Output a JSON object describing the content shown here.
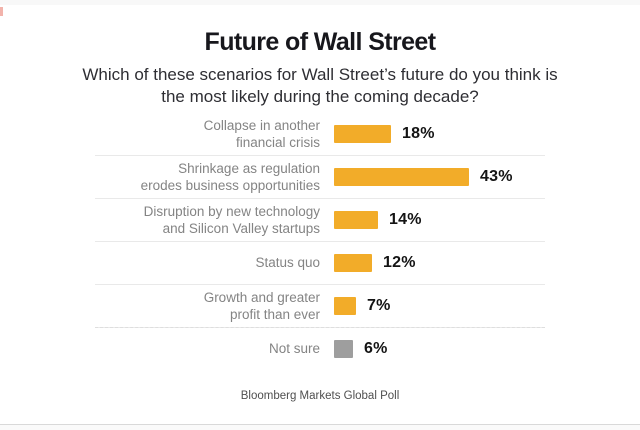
{
  "header": {
    "title": "Future of Wall Street",
    "subtitle_line1": "Which of these scenarios for Wall Street’s future do you think is",
    "subtitle_line2": "the most likely during the coming decade?"
  },
  "footer": {
    "source": "Bloomberg Markets Global Poll"
  },
  "colors": {
    "bar_default": "#F2AC29",
    "bar_not_sure": "#9E9E9E",
    "value_text": "#141414",
    "label_text": "#848484",
    "separator": "#e9e9e9",
    "logo_mark": "#f2b3ab"
  },
  "chart_data": {
    "type": "bar",
    "orientation": "horizontal",
    "title": "Future of Wall Street",
    "question": "Which of these scenarios for Wall Street’s future do you think is the most likely during the coming decade?",
    "categories": [
      "Collapse in another financial crisis",
      "Shrinkage as regulation erodes business opportunities",
      "Disruption by new technology and Silicon Valley startups",
      "Status quo",
      "Growth and greater profit than ever",
      "Not sure"
    ],
    "values": [
      18,
      43,
      14,
      12,
      7,
      6
    ],
    "unit": "%",
    "value_labels": [
      "18%",
      "43%",
      "14%",
      "12%",
      "7%",
      "6%"
    ],
    "label_lines": [
      [
        "Collapse in another",
        "financial crisis"
      ],
      [
        "Shrinkage as regulation",
        "erodes business opportunities"
      ],
      [
        "Disruption by new technology",
        "and Silicon Valley startups"
      ],
      [
        "Status quo"
      ],
      [
        "Growth and greater",
        "profit than ever"
      ],
      [
        "Not sure"
      ]
    ],
    "bar_colors": [
      "#F2AC29",
      "#F2AC29",
      "#F2AC29",
      "#F2AC29",
      "#F2AC29",
      "#9E9E9E"
    ],
    "xlim": [
      0,
      45
    ],
    "grid": false,
    "legend": false,
    "source": "Bloomberg Markets Global Poll"
  }
}
